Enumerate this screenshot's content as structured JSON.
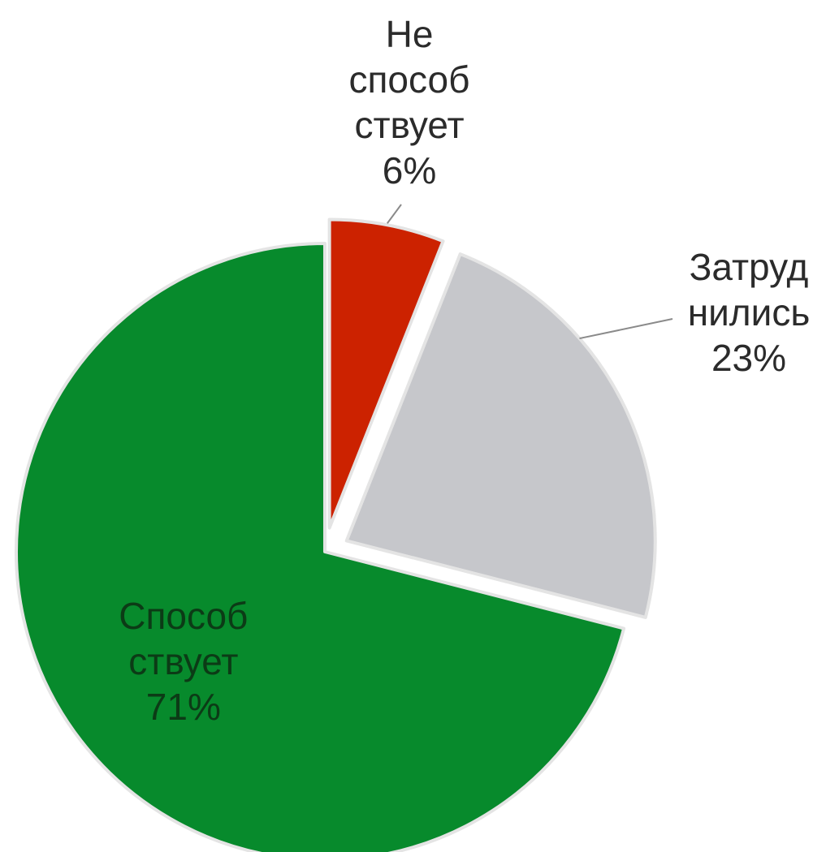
{
  "chart_data": {
    "type": "pie",
    "slices": [
      {
        "lines": [
          "Не",
          "способ",
          "ствует",
          "6%"
        ],
        "value": 6,
        "color": "#cc2200",
        "exploded": true,
        "label_position": "outside-top"
      },
      {
        "lines": [
          "Затруд",
          "нились",
          "23%"
        ],
        "value": 23,
        "color": "#c6c7cb",
        "exploded": true,
        "label_position": "outside-right"
      },
      {
        "lines": [
          "Способ",
          "ствует",
          "71%"
        ],
        "value": 71,
        "color": "#078a2c",
        "exploded": false,
        "label_position": "inside"
      }
    ],
    "start": "12 o'clock",
    "direction": "clockwise",
    "legend": "none"
  }
}
